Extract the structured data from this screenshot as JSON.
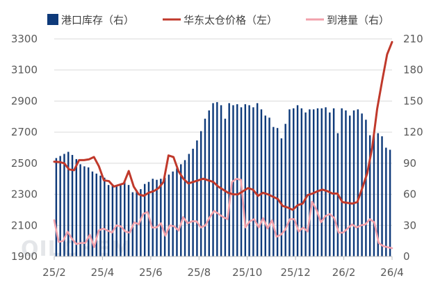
{
  "chart_data": {
    "type": "bar+line",
    "watermark": "OILCHEM",
    "legend": [
      {
        "label": "港口库存（右）",
        "kind": "bar",
        "color": "#0e3a7a"
      },
      {
        "label": "华东太仓价格（左）",
        "kind": "line",
        "color": "#c0392b"
      },
      {
        "label": "到港量（右）",
        "kind": "line",
        "color": "#f2a1ab"
      }
    ],
    "x_tick_labels": [
      "25/2",
      "25/4",
      "25/6",
      "25/8",
      "25/10",
      "25/12",
      "26/2",
      "26/4"
    ],
    "y_left": {
      "min": 1900,
      "max": 3300,
      "ticks": [
        1900,
        2100,
        2300,
        2500,
        2700,
        2900,
        3100,
        3300
      ]
    },
    "y_right": {
      "min": 0,
      "max": 210,
      "ticks": [
        0,
        30,
        60,
        90,
        120,
        150,
        180,
        210
      ]
    },
    "port_inventory": [
      95,
      97,
      99,
      101,
      98,
      94,
      89,
      87,
      86,
      82,
      80,
      78,
      76,
      69,
      69,
      68,
      69,
      72,
      69,
      62,
      64,
      65,
      70,
      72,
      75,
      74,
      75,
      76,
      79,
      82,
      85,
      89,
      93,
      99,
      104,
      112,
      121,
      133,
      141,
      148,
      149,
      146,
      133,
      148,
      146,
      147,
      144,
      147,
      146,
      144,
      148,
      142,
      136,
      134,
      125,
      124,
      114,
      128,
      142,
      143,
      146,
      143,
      139,
      142,
      142,
      143,
      143,
      144,
      139,
      143,
      119,
      143,
      141,
      136,
      141,
      142,
      138,
      132,
      117,
      117,
      119,
      116,
      105,
      103
    ],
    "taicang_price": [
      2510,
      2508,
      2500,
      2460,
      2455,
      2520,
      2520,
      2525,
      2540,
      2480,
      2390,
      2385,
      2350,
      2360,
      2370,
      2450,
      2350,
      2300,
      2290,
      2310,
      2320,
      2340,
      2380,
      2550,
      2540,
      2450,
      2400,
      2370,
      2380,
      2390,
      2400,
      2390,
      2380,
      2350,
      2330,
      2310,
      2300,
      2300,
      2320,
      2340,
      2330,
      2290,
      2310,
      2300,
      2285,
      2270,
      2225,
      2215,
      2200,
      2230,
      2240,
      2295,
      2305,
      2320,
      2330,
      2320,
      2305,
      2305,
      2250,
      2245,
      2240,
      2250,
      2340,
      2435,
      2600,
      2850,
      3030,
      3200,
      3280
    ],
    "arrivals": [
      35,
      14,
      15,
      24,
      17,
      12,
      13,
      13,
      21,
      9,
      25,
      27,
      25,
      23,
      30,
      29,
      24,
      23,
      33,
      31,
      41,
      43,
      28,
      28,
      32,
      20,
      30,
      29,
      25,
      38,
      32,
      34,
      34,
      28,
      30,
      38,
      44,
      41,
      38,
      36,
      72,
      75,
      74,
      28,
      34,
      36,
      28,
      37,
      27,
      35,
      19,
      21,
      26,
      36,
      36,
      24,
      28,
      24,
      53,
      45,
      33,
      39,
      41,
      37,
      23,
      23,
      27,
      31,
      28,
      30,
      31,
      36,
      33,
      13,
      10,
      9,
      8
    ]
  }
}
